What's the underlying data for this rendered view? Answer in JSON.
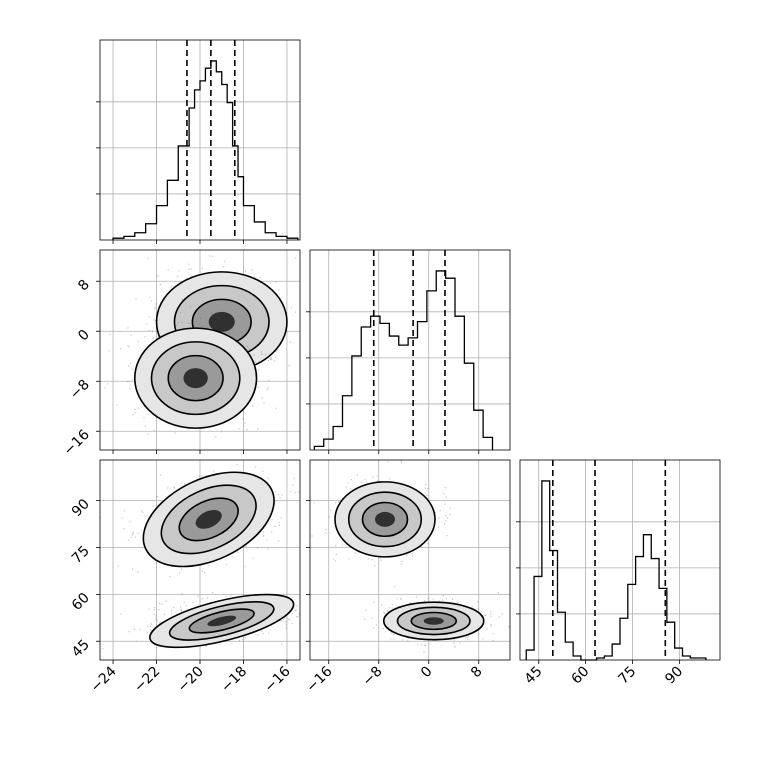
{
  "chart_data": {
    "type": "corner",
    "grid": true,
    "parameters": [
      {
        "id": "p1",
        "ticks": [
          -24,
          -22,
          -20,
          -18,
          -16
        ],
        "tick_labels": [
          "−24",
          "−22",
          "−20",
          "−18",
          "−16"
        ],
        "range": [
          -24.6,
          -15.4
        ],
        "quantiles": [
          -20.6,
          -19.5,
          -18.4
        ],
        "hist_edges": [
          -24.0,
          -23.5,
          -23.0,
          -22.5,
          -22.0,
          -21.5,
          -21.0,
          -20.5,
          -20.25,
          -20.0,
          -19.75,
          -19.5,
          -19.25,
          -19.0,
          -18.75,
          -18.5,
          -18.25,
          -18.0,
          -17.5,
          -17.0,
          -16.5,
          -16.0,
          -15.5
        ],
        "hist_counts": [
          0.01,
          0.02,
          0.04,
          0.09,
          0.19,
          0.33,
          0.52,
          0.73,
          0.83,
          0.88,
          0.95,
          0.99,
          0.93,
          0.86,
          0.76,
          0.52,
          0.35,
          0.19,
          0.1,
          0.04,
          0.02,
          0.01
        ]
      },
      {
        "id": "p2",
        "ticks": [
          -16,
          -8,
          0,
          8
        ],
        "tick_labels": [
          "−16",
          "−8",
          "0",
          "8"
        ],
        "range": [
          -19,
          13
        ],
        "quantiles": [
          -8.8,
          -2.5,
          2.6
        ],
        "hist_edges": [
          -18.3,
          -16.8,
          -15.3,
          -13.8,
          -12.3,
          -10.8,
          -9.3,
          -7.8,
          -6.3,
          -4.8,
          -3.3,
          -1.8,
          -0.3,
          1.2,
          2.7,
          4.2,
          5.7,
          7.2,
          8.7,
          10.2
        ],
        "hist_counts": [
          0.02,
          0.06,
          0.13,
          0.3,
          0.52,
          0.68,
          0.74,
          0.7,
          0.63,
          0.58,
          0.62,
          0.71,
          0.88,
          0.99,
          0.95,
          0.74,
          0.48,
          0.22,
          0.07
        ]
      },
      {
        "id": "p3",
        "ticks": [
          45,
          60,
          75,
          90
        ],
        "tick_labels": [
          "45",
          "60",
          "75",
          "90"
        ],
        "range": [
          39,
          103
        ],
        "quantiles": [
          49.5,
          63,
          85.5
        ],
        "hist_edges": [
          41,
          43.5,
          46,
          48.5,
          51,
          53.5,
          56,
          58.5,
          61,
          63.5,
          66,
          68.5,
          71,
          73.5,
          76,
          78.5,
          81,
          83.5,
          86,
          88.5,
          91,
          93.5,
          96,
          98.5
        ],
        "hist_counts": [
          0.05,
          0.42,
          0.9,
          0.55,
          0.24,
          0.09,
          0.02,
          0.0,
          0.0,
          0.01,
          0.02,
          0.08,
          0.21,
          0.38,
          0.52,
          0.63,
          0.51,
          0.36,
          0.19,
          0.06,
          0.02,
          0.01,
          0.01
        ]
      }
    ],
    "pairs": [
      {
        "x": "p1",
        "y": "p2",
        "modes": [
          {
            "center": [
              -19.0,
              1.5
            ],
            "spread": [
              1.5,
              4.0
            ]
          },
          {
            "center": [
              -20.2,
              -7.5
            ],
            "spread": [
              1.4,
              4.0
            ]
          }
        ]
      },
      {
        "x": "p1",
        "y": "p3",
        "modes": [
          {
            "center": [
              -19.6,
              84.0
            ],
            "spread": [
              1.6,
              6.5
            ],
            "angle_deg": -25
          },
          {
            "center": [
              -19.0,
              51.5
            ],
            "spread": [
              1.7,
              3.2
            ],
            "angle_deg": -14
          }
        ]
      },
      {
        "x": "p2",
        "y": "p3",
        "modes": [
          {
            "center": [
              -7.0,
              84.0
            ],
            "spread": [
              4.0,
              6.0
            ]
          },
          {
            "center": [
              0.8,
              51.5
            ],
            "spread": [
              4.0,
              3.0
            ]
          }
        ]
      }
    ]
  }
}
